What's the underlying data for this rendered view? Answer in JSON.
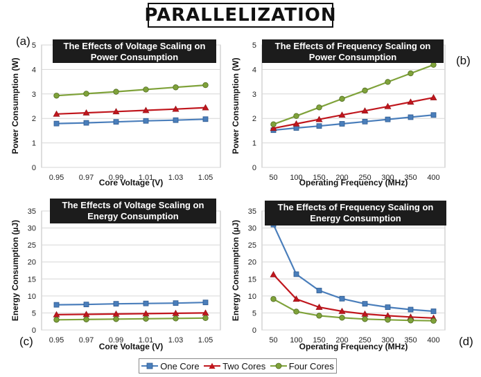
{
  "title": "PARALLELIZATION",
  "panel_labels": [
    "(a)",
    "(b)",
    "(c)",
    "(d)"
  ],
  "colors": {
    "one_core": "#4a7ebb",
    "two_cores": "#c0161d",
    "four_cores": "#7fa23a",
    "title_bg": "#1c1c1c"
  },
  "legend": [
    {
      "name": "One Core",
      "marker": "square",
      "color": "#4a7ebb"
    },
    {
      "name": "Two Cores",
      "marker": "triangle",
      "color": "#c0161d"
    },
    {
      "name": "Four Cores",
      "marker": "circle",
      "color": "#7fa23a"
    }
  ],
  "chart_data": [
    {
      "type": "line",
      "title": [
        "The Effects of Voltage Scaling on",
        "Power Consumption"
      ],
      "xlabel": "Core Voltage (V)",
      "ylabel": "Power Consumption (W)",
      "x": [
        "0.95",
        "0.97",
        "0.99",
        "1.01",
        "1.03",
        "1.05"
      ],
      "ylim": [
        0,
        5
      ],
      "yticks": [
        "0",
        "1",
        "2",
        "3",
        "4",
        "5"
      ],
      "grid": true,
      "series": [
        {
          "name": "One Core",
          "values": [
            1.79,
            1.82,
            1.86,
            1.9,
            1.93,
            1.97
          ]
        },
        {
          "name": "Two Cores",
          "values": [
            2.18,
            2.23,
            2.28,
            2.33,
            2.38,
            2.44
          ]
        },
        {
          "name": "Four Cores",
          "values": [
            2.93,
            3.01,
            3.09,
            3.18,
            3.27,
            3.36
          ]
        }
      ]
    },
    {
      "type": "line",
      "title": [
        "The Effects of Frequency Scaling on",
        "Power Consumption"
      ],
      "xlabel": "Operating Frequency (MHz)",
      "ylabel": "Power Consumption (W)",
      "x": [
        "50",
        "100",
        "150",
        "200",
        "250",
        "300",
        "350",
        "400"
      ],
      "ylim": [
        0,
        5
      ],
      "yticks": [
        "0",
        "1",
        "2",
        "3",
        "4",
        "5"
      ],
      "grid": true,
      "series": [
        {
          "name": "One Core",
          "values": [
            1.52,
            1.61,
            1.69,
            1.78,
            1.87,
            1.96,
            2.05,
            2.14
          ]
        },
        {
          "name": "Two Cores",
          "values": [
            1.6,
            1.78,
            1.96,
            2.14,
            2.31,
            2.49,
            2.67,
            2.85
          ]
        },
        {
          "name": "Four Cores",
          "values": [
            1.76,
            2.1,
            2.45,
            2.8,
            3.14,
            3.49,
            3.84,
            4.19
          ]
        }
      ]
    },
    {
      "type": "line",
      "title": [
        "The Effects of Voltage Scaling on",
        "Energy Consumption"
      ],
      "xlabel": "Core Voltage (V)",
      "ylabel": "Energy Consumption (µJ)",
      "x": [
        "0.95",
        "0.97",
        "0.99",
        "1.01",
        "1.03",
        "1.05"
      ],
      "ylim": [
        0,
        35
      ],
      "yticks": [
        "0",
        "5",
        "10",
        "15",
        "20",
        "25",
        "30",
        "35"
      ],
      "grid": true,
      "series": [
        {
          "name": "One Core",
          "values": [
            7.4,
            7.5,
            7.7,
            7.8,
            7.9,
            8.1
          ]
        },
        {
          "name": "Two Cores",
          "values": [
            4.5,
            4.6,
            4.7,
            4.8,
            4.9,
            5.0
          ]
        },
        {
          "name": "Four Cores",
          "values": [
            3.0,
            3.1,
            3.2,
            3.3,
            3.4,
            3.5
          ]
        }
      ]
    },
    {
      "type": "line",
      "title": [
        "The Effects of Frequency Scaling on",
        "Energy Consumption"
      ],
      "xlabel": "Operating Frequency (MHz)",
      "ylabel": "Energy Consumption (µJ)",
      "x": [
        "50",
        "100",
        "150",
        "200",
        "250",
        "300",
        "350",
        "400"
      ],
      "ylim": [
        0,
        35
      ],
      "yticks": [
        "0",
        "5",
        "10",
        "15",
        "20",
        "25",
        "30",
        "35"
      ],
      "grid": true,
      "series": [
        {
          "name": "One Core",
          "values": [
            31.0,
            16.4,
            11.6,
            9.2,
            7.7,
            6.7,
            6.0,
            5.5
          ]
        },
        {
          "name": "Two Cores",
          "values": [
            16.3,
            9.1,
            6.7,
            5.5,
            4.7,
            4.2,
            3.8,
            3.5
          ]
        },
        {
          "name": "Four Cores",
          "values": [
            9.1,
            5.4,
            4.2,
            3.6,
            3.2,
            3.0,
            2.8,
            2.7
          ]
        }
      ]
    }
  ]
}
